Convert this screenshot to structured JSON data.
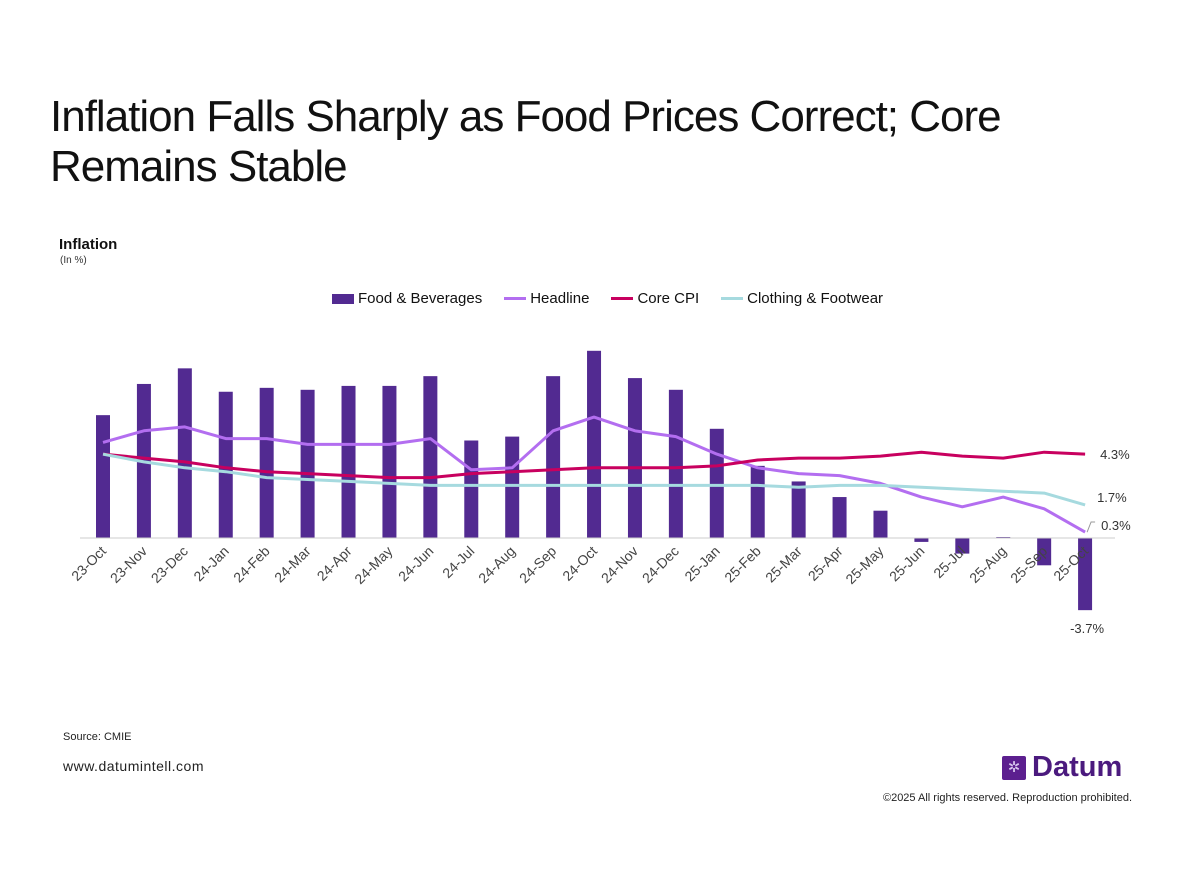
{
  "title": "Inflation Falls Sharply as Food Prices Correct; Core Remains Stable",
  "footer": {
    "source": "Source: CMIE",
    "website": "www.datumintell.com",
    "logo_text": "Datum",
    "copyright": "©2025 All rights reserved. Reproduction prohibited."
  },
  "chart_data": {
    "type": "bar+line",
    "ylabel": "Inflation",
    "yunit": "(In %)",
    "legend_position": "top",
    "grid": false,
    "categories": [
      "23-Oct",
      "23-Nov",
      "23-Dec",
      "24-Jan",
      "24-Feb",
      "24-Mar",
      "24-Apr",
      "24-May",
      "24-Jun",
      "24-Jul",
      "24-Aug",
      "24-Sep",
      "24-Oct",
      "24-Nov",
      "24-Dec",
      "25-Jan",
      "25-Feb",
      "25-Mar",
      "25-Apr",
      "25-May",
      "25-Jun",
      "25-Jul",
      "25-Aug",
      "25-Sep",
      "25-Oct"
    ],
    "series": [
      {
        "name": "Food & Beverages",
        "kind": "bar",
        "color": "#522a91",
        "values": [
          6.3,
          7.9,
          8.7,
          7.5,
          7.7,
          7.6,
          7.8,
          7.8,
          8.3,
          5.0,
          5.2,
          8.3,
          9.6,
          8.2,
          7.6,
          5.6,
          3.7,
          2.9,
          2.1,
          1.4,
          -0.2,
          -0.8,
          0.05,
          -1.4,
          -3.7
        ],
        "end_label": "-3.7%"
      },
      {
        "name": "Headline",
        "kind": "line",
        "color": "#b36ef0",
        "values": [
          4.9,
          5.5,
          5.7,
          5.1,
          5.1,
          4.8,
          4.8,
          4.8,
          5.1,
          3.5,
          3.6,
          5.5,
          6.2,
          5.5,
          5.2,
          4.3,
          3.6,
          3.3,
          3.2,
          2.8,
          2.1,
          1.6,
          2.1,
          1.5,
          0.3
        ],
        "end_label": "0.3%"
      },
      {
        "name": "Core CPI",
        "kind": "line",
        "color": "#c8005f",
        "values": [
          4.3,
          4.1,
          3.9,
          3.6,
          3.4,
          3.3,
          3.2,
          3.1,
          3.1,
          3.3,
          3.4,
          3.5,
          3.6,
          3.6,
          3.6,
          3.7,
          4.0,
          4.1,
          4.1,
          4.2,
          4.4,
          4.2,
          4.1,
          4.4,
          4.3
        ],
        "end_label": "4.3%"
      },
      {
        "name": "Clothing & Footwear",
        "kind": "line",
        "color": "#a6dadf",
        "values": [
          4.3,
          3.9,
          3.6,
          3.4,
          3.1,
          3.0,
          2.9,
          2.8,
          2.7,
          2.7,
          2.7,
          2.7,
          2.7,
          2.7,
          2.7,
          2.7,
          2.7,
          2.6,
          2.7,
          2.7,
          2.6,
          2.5,
          2.4,
          2.3,
          1.7
        ],
        "end_label": "1.7%"
      }
    ]
  }
}
